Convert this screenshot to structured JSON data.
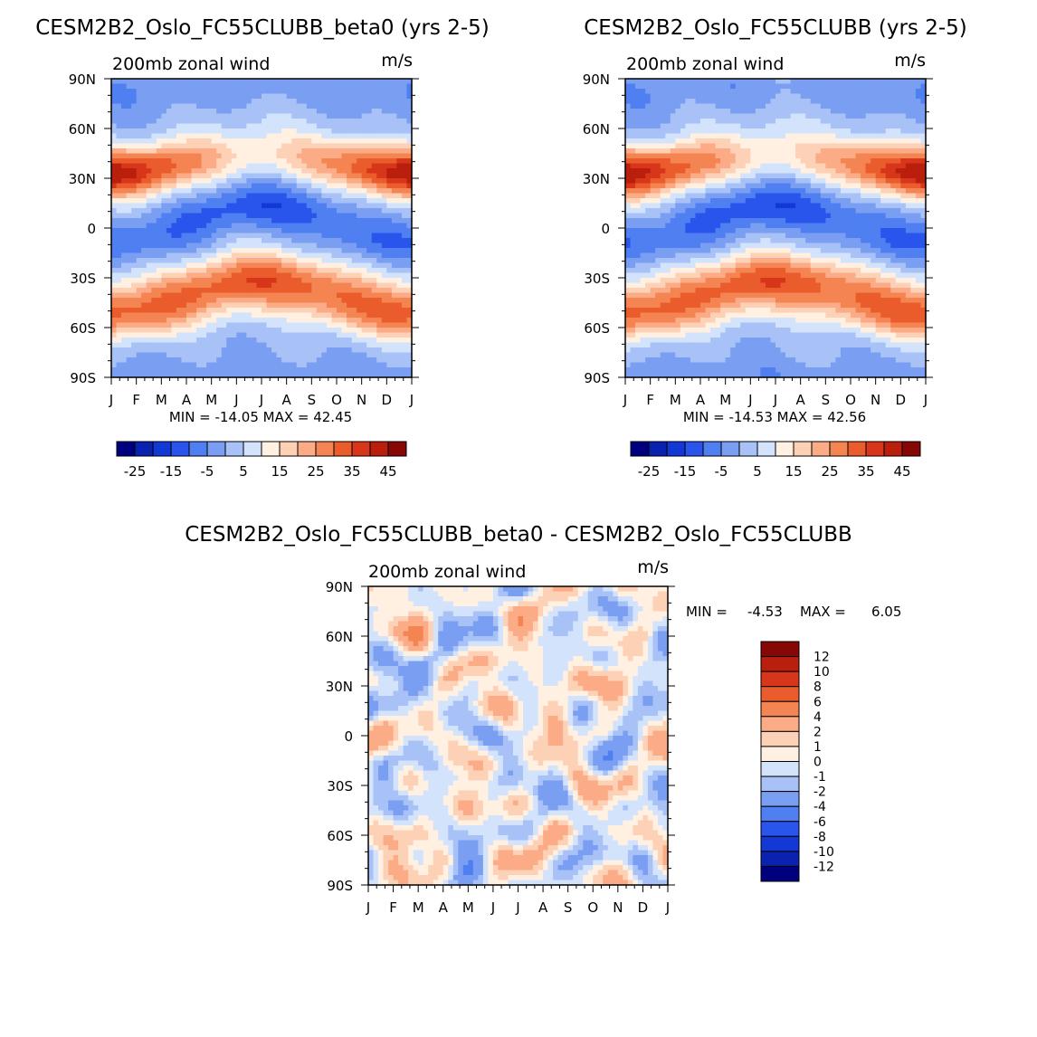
{
  "colors": {
    "ramp": [
      "#00007f",
      "#0a22b0",
      "#1238d6",
      "#2a55ec",
      "#4f7ff0",
      "#7a9ef2",
      "#a8c1f6",
      "#d2e3fb",
      "#fff0e1",
      "#fdd1b6",
      "#fbac87",
      "#f48452",
      "#eb5c2c",
      "#d8361a",
      "#b91f0c",
      "#860705"
    ],
    "diff_ramp": [
      "#00007f",
      "#0a22b0",
      "#1238d6",
      "#2a55ec",
      "#4f7ff0",
      "#7a9ef2",
      "#a8c1f6",
      "#d2e3fb",
      "#fff0e1",
      "#fdd1b6",
      "#fbac87",
      "#f48452",
      "#eb5c2c",
      "#d8361a",
      "#b91f0c",
      "#860705"
    ]
  },
  "chart_data": [
    {
      "type": "heatmap",
      "id": "top_left",
      "title": "CESM2B2_Oslo_FC55CLUBB_beta0 (yrs 2-5)",
      "subtitle": "200mb zonal wind",
      "units": "m/s",
      "x_ticks": [
        "J",
        "F",
        "M",
        "A",
        "M",
        "J",
        "J",
        "A",
        "S",
        "O",
        "N",
        "D",
        "J"
      ],
      "y_ticks": [
        "90N",
        "60N",
        "30N",
        "0",
        "30S",
        "60S",
        "90S"
      ],
      "stats": "MIN = -14.05 MAX = 42.45",
      "min": -14.05,
      "max": 42.45,
      "colorbar_levels": [
        -30,
        -25,
        -20,
        -15,
        -10,
        -5,
        0,
        5,
        10,
        15,
        20,
        25,
        30,
        35,
        40,
        45
      ],
      "colorbar_labels": [
        "-25",
        "-15",
        "-5",
        "5",
        "15",
        "25",
        "35",
        "45"
      ],
      "field_model": {
        "nh_jet": {
          "lat": 32,
          "amp_winter": 42,
          "amp_summer": 14
        },
        "sh_jet": {
          "lat": -40,
          "amp_winter": 34,
          "amp_summer": 26
        },
        "tropical_easterly": {
          "lat": 10,
          "amp": -14
        }
      }
    },
    {
      "type": "heatmap",
      "id": "top_right",
      "title": "CESM2B2_Oslo_FC55CLUBB (yrs 2-5)",
      "subtitle": "200mb zonal wind",
      "units": "m/s",
      "x_ticks": [
        "J",
        "F",
        "M",
        "A",
        "M",
        "J",
        "J",
        "A",
        "S",
        "O",
        "N",
        "D",
        "J"
      ],
      "y_ticks": [
        "90N",
        "60N",
        "30N",
        "0",
        "30S",
        "60S",
        "90S"
      ],
      "stats": "MIN = -14.53 MAX = 42.56",
      "min": -14.53,
      "max": 42.56,
      "colorbar_levels": [
        -30,
        -25,
        -20,
        -15,
        -10,
        -5,
        0,
        5,
        10,
        15,
        20,
        25,
        30,
        35,
        40,
        45
      ],
      "colorbar_labels": [
        "-25",
        "-15",
        "-5",
        "5",
        "15",
        "25",
        "35",
        "45"
      ],
      "field_model": {
        "nh_jet": {
          "lat": 32,
          "amp_winter": 42,
          "amp_summer": 14
        },
        "sh_jet": {
          "lat": -40,
          "amp_winter": 34,
          "amp_summer": 26
        },
        "tropical_easterly": {
          "lat": 10,
          "amp": -14.5
        }
      }
    },
    {
      "type": "heatmap",
      "id": "difference",
      "title": "CESM2B2_Oslo_FC55CLUBB_beta0 - CESM2B2_Oslo_FC55CLUBB",
      "subtitle": "200mb zonal wind",
      "units": "m/s",
      "x_ticks": [
        "J",
        "F",
        "M",
        "A",
        "M",
        "J",
        "J",
        "A",
        "S",
        "O",
        "N",
        "D",
        "J"
      ],
      "y_ticks": [
        "90N",
        "60N",
        "30N",
        "0",
        "30S",
        "60S",
        "90S"
      ],
      "stats_min_label": "MIN =",
      "stats_min_value": "-4.53",
      "stats_max_label": "MAX =",
      "stats_max_value": "6.05",
      "min": -4.53,
      "max": 6.05,
      "colorbar_levels": [
        -14,
        -12,
        -10,
        -8,
        -6,
        -4,
        -2,
        -1,
        0,
        1,
        2,
        4,
        6,
        8,
        10,
        12
      ],
      "colorbar_labels": [
        "12",
        "10",
        "8",
        "6",
        "4",
        "2",
        "1",
        "0",
        "-1",
        "-2",
        "-4",
        "-6",
        "-8",
        "-10",
        "-12"
      ]
    }
  ]
}
